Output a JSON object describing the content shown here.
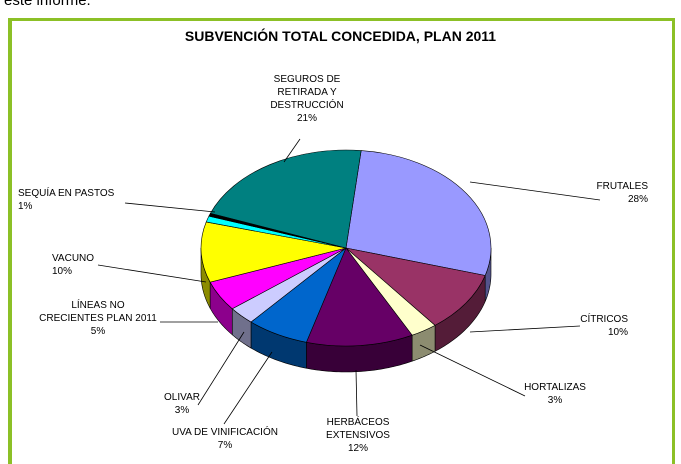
{
  "page_text": "este informe.",
  "chart_data": {
    "type": "pie",
    "title": "SUBVENCIÓN TOTAL CONCEDIDA, PLAN 2011",
    "categories": [
      "FRUTALES",
      "CÍTRICOS",
      "HORTALIZAS",
      "HERBÁCEOS\nEXTENSIVOS",
      "UVA DE VINIFICACIÓN",
      "OLIVAR",
      "LÍNEAS NO\nCRECIENTES PLAN 2011",
      "VACUNO",
      "SEQUÍA EN PASTOS",
      null,
      "SEGUROS DE\nRETIRADA Y\nDESTRUCCIÓN"
    ],
    "values": [
      28,
      10,
      3,
      12,
      7,
      3,
      5,
      10,
      1,
      0.5,
      21
    ],
    "value_labels": [
      "28%",
      "10%",
      "3%",
      "12%",
      "7%",
      "3%",
      "5%",
      "10%",
      "1%",
      null,
      "21%"
    ],
    "colors": [
      "#9999ff",
      "#993366",
      "#ffffcc",
      "#660066",
      "#0066cc",
      "#ccccff",
      "#ff00ff",
      "#ffff00",
      "#00ffff",
      "#000000",
      "#008080"
    ]
  }
}
